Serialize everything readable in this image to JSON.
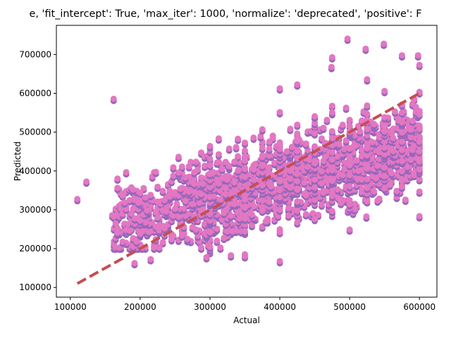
{
  "chart_data": {
    "type": "scatter",
    "title": "e, 'fit_intercept': True, 'max_iter': 1000, 'normalize': 'deprecated', 'positive': F",
    "xlabel": "Actual",
    "ylabel": "Predicted",
    "xlim": [
      80000,
      625000
    ],
    "ylim": [
      75000,
      775000
    ],
    "xticks": [
      100000,
      200000,
      300000,
      400000,
      500000,
      600000
    ],
    "yticks": [
      100000,
      200000,
      300000,
      400000,
      500000,
      600000,
      700000
    ],
    "xtick_labels": [
      "100000",
      "200000",
      "300000",
      "400000",
      "500000",
      "600000"
    ],
    "ytick_labels": [
      "100000",
      "200000",
      "300000",
      "400000",
      "500000",
      "600000",
      "700000"
    ],
    "grid": false,
    "scatter": {
      "colors": [
        "#9467bd",
        "#e377c2"
      ],
      "x_range": [
        110000,
        600000
      ],
      "y_range": [
        160000,
        740000
      ],
      "outliers": [
        {
          "x": 110000,
          "y": 325000
        },
        {
          "x": 123000,
          "y": 370000
        },
        {
          "x": 162000,
          "y": 583000
        },
        {
          "x": 192000,
          "y": 160000
        },
        {
          "x": 215000,
          "y": 170000
        },
        {
          "x": 295000,
          "y": 175000
        },
        {
          "x": 400000,
          "y": 165000
        },
        {
          "x": 425000,
          "y": 620000
        },
        {
          "x": 497000,
          "y": 738000
        },
        {
          "x": 523000,
          "y": 712000
        },
        {
          "x": 549000,
          "y": 725000
        },
        {
          "x": 575000,
          "y": 695000
        },
        {
          "x": 598000,
          "y": 695000
        },
        {
          "x": 475000,
          "y": 690000
        },
        {
          "x": 524000,
          "y": 280000
        },
        {
          "x": 400000,
          "y": 240000
        },
        {
          "x": 425000,
          "y": 265000
        },
        {
          "x": 474000,
          "y": 665000
        },
        {
          "x": 400000,
          "y": 610000
        },
        {
          "x": 330000,
          "y": 180000
        }
      ]
    },
    "reference_line": {
      "x": [
        110000,
        600000
      ],
      "y": [
        110000,
        600000
      ],
      "color": "#c44e52",
      "style": "dashed"
    }
  }
}
